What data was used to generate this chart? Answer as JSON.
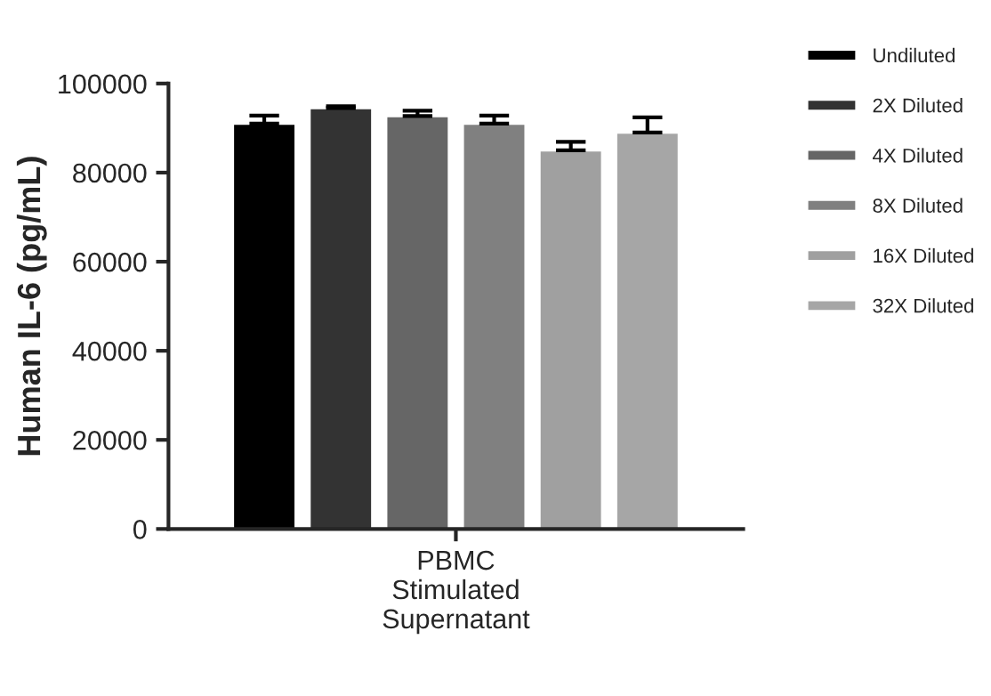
{
  "chart_data": {
    "type": "bar",
    "ylabel": "Human IL-6 (pg/mL)",
    "categories": [
      "PBMC\nStimulated\nSupernatant"
    ],
    "series": [
      {
        "name": "Undiluted",
        "color": "#000000",
        "values": [
          91000
        ],
        "errors": [
          [
            91000,
            92800
          ]
        ]
      },
      {
        "name": "2X Diluted",
        "color": "#333333",
        "values": [
          94500
        ],
        "errors": [
          [
            94500,
            94900
          ]
        ]
      },
      {
        "name": "4X Diluted",
        "color": "#666666",
        "values": [
          92700
        ],
        "errors": [
          [
            92700,
            93900
          ]
        ]
      },
      {
        "name": "8X Diluted",
        "color": "#808080",
        "values": [
          91000
        ],
        "errors": [
          [
            91000,
            92800
          ]
        ]
      },
      {
        "name": "16X Diluted",
        "color": "#a0a0a0",
        "values": [
          85000
        ],
        "errors": [
          [
            85000,
            86900
          ]
        ]
      },
      {
        "name": "32X Diluted",
        "color": "#a6a6a6",
        "values": [
          89000
        ],
        "errors": [
          [
            89000,
            92400
          ]
        ]
      }
    ],
    "ylim": [
      0,
      100000
    ],
    "yticks": [
      0,
      20000,
      40000,
      60000,
      80000,
      100000
    ],
    "grid": false,
    "legend": "top right"
  }
}
